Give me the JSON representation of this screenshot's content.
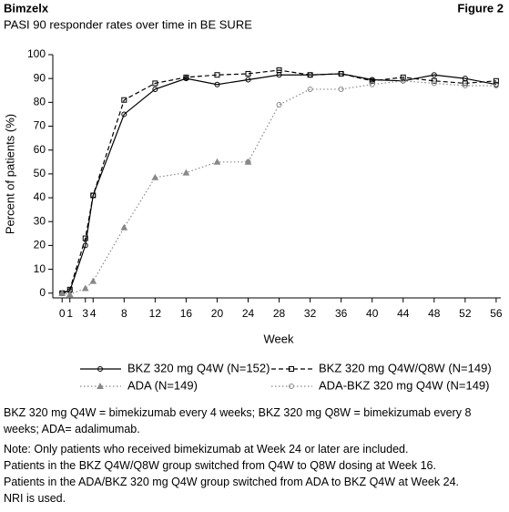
{
  "header": {
    "brand": "Bimzelx",
    "figure": "Figure 2"
  },
  "chart_data": {
    "type": "line",
    "title": "PASI 90 responder rates over time in BE SURE",
    "x_label": "Week",
    "y_label": "Percent of patients (%)",
    "x": [
      0,
      1,
      3,
      4,
      8,
      12,
      16,
      20,
      24,
      28,
      32,
      36,
      40,
      44,
      48,
      52,
      56
    ],
    "xlim": [
      -1.2,
      56.6
    ],
    "xticks": [
      0,
      1,
      3,
      4,
      8,
      12,
      16,
      20,
      24,
      28,
      32,
      36,
      40,
      44,
      48,
      52,
      56
    ],
    "ylim": [
      -2,
      100
    ],
    "yticks": [
      0,
      10,
      20,
      30,
      40,
      50,
      60,
      70,
      80,
      90,
      100
    ],
    "series": [
      {
        "name": "BKZ 320 mg Q4W (N=152)",
        "color": "#000000",
        "dash": "solid",
        "marker": "circle",
        "values": [
          0,
          1,
          20,
          41,
          75,
          85.5,
          90,
          87.5,
          89.5,
          91.5,
          91.5,
          92,
          89.5,
          89,
          91.5,
          90,
          87.5
        ]
      },
      {
        "name": "BKZ 320 mg Q4W/Q8W (N=149)",
        "color": "#000000",
        "dash": "dashed",
        "marker": "square",
        "values": [
          0,
          1.5,
          23,
          41,
          81,
          88,
          90.5,
          91.5,
          92,
          93.5,
          91.5,
          92,
          89,
          90.5,
          89,
          88,
          89
        ]
      },
      {
        "name": "ADA (N=149)",
        "color": "#888888",
        "dash": "dotted",
        "marker": "triangle",
        "values": [
          0,
          -0.5,
          2,
          5,
          27.5,
          48.5,
          50.5,
          55,
          55,
          null,
          null,
          null,
          null,
          null,
          null,
          null,
          null
        ]
      },
      {
        "name": "ADA-BKZ 320 mg Q4W (N=149)",
        "color": "#888888",
        "dash": "dotted",
        "marker": "circle",
        "values": [
          null,
          null,
          null,
          null,
          null,
          null,
          null,
          null,
          55,
          79,
          85.5,
          85.5,
          87.5,
          89,
          88,
          87,
          87
        ]
      }
    ]
  },
  "notes": [
    "BKZ 320 mg Q4W = bimekizumab every 4 weeks; BKZ 320 mg Q8W = bimekizumab every 8 weeks; ADA= adalimumab.",
    "Note: Only patients who received bimekizumab at Week 24 or later are included.",
    "Patients in the BKZ Q4W/Q8W group switched from Q4W to Q8W dosing at Week 16.",
    "Patients in the ADA/BKZ 320 mg Q4W group switched from ADA to BKZ Q4W at Week 24.",
    "NRI is used."
  ]
}
